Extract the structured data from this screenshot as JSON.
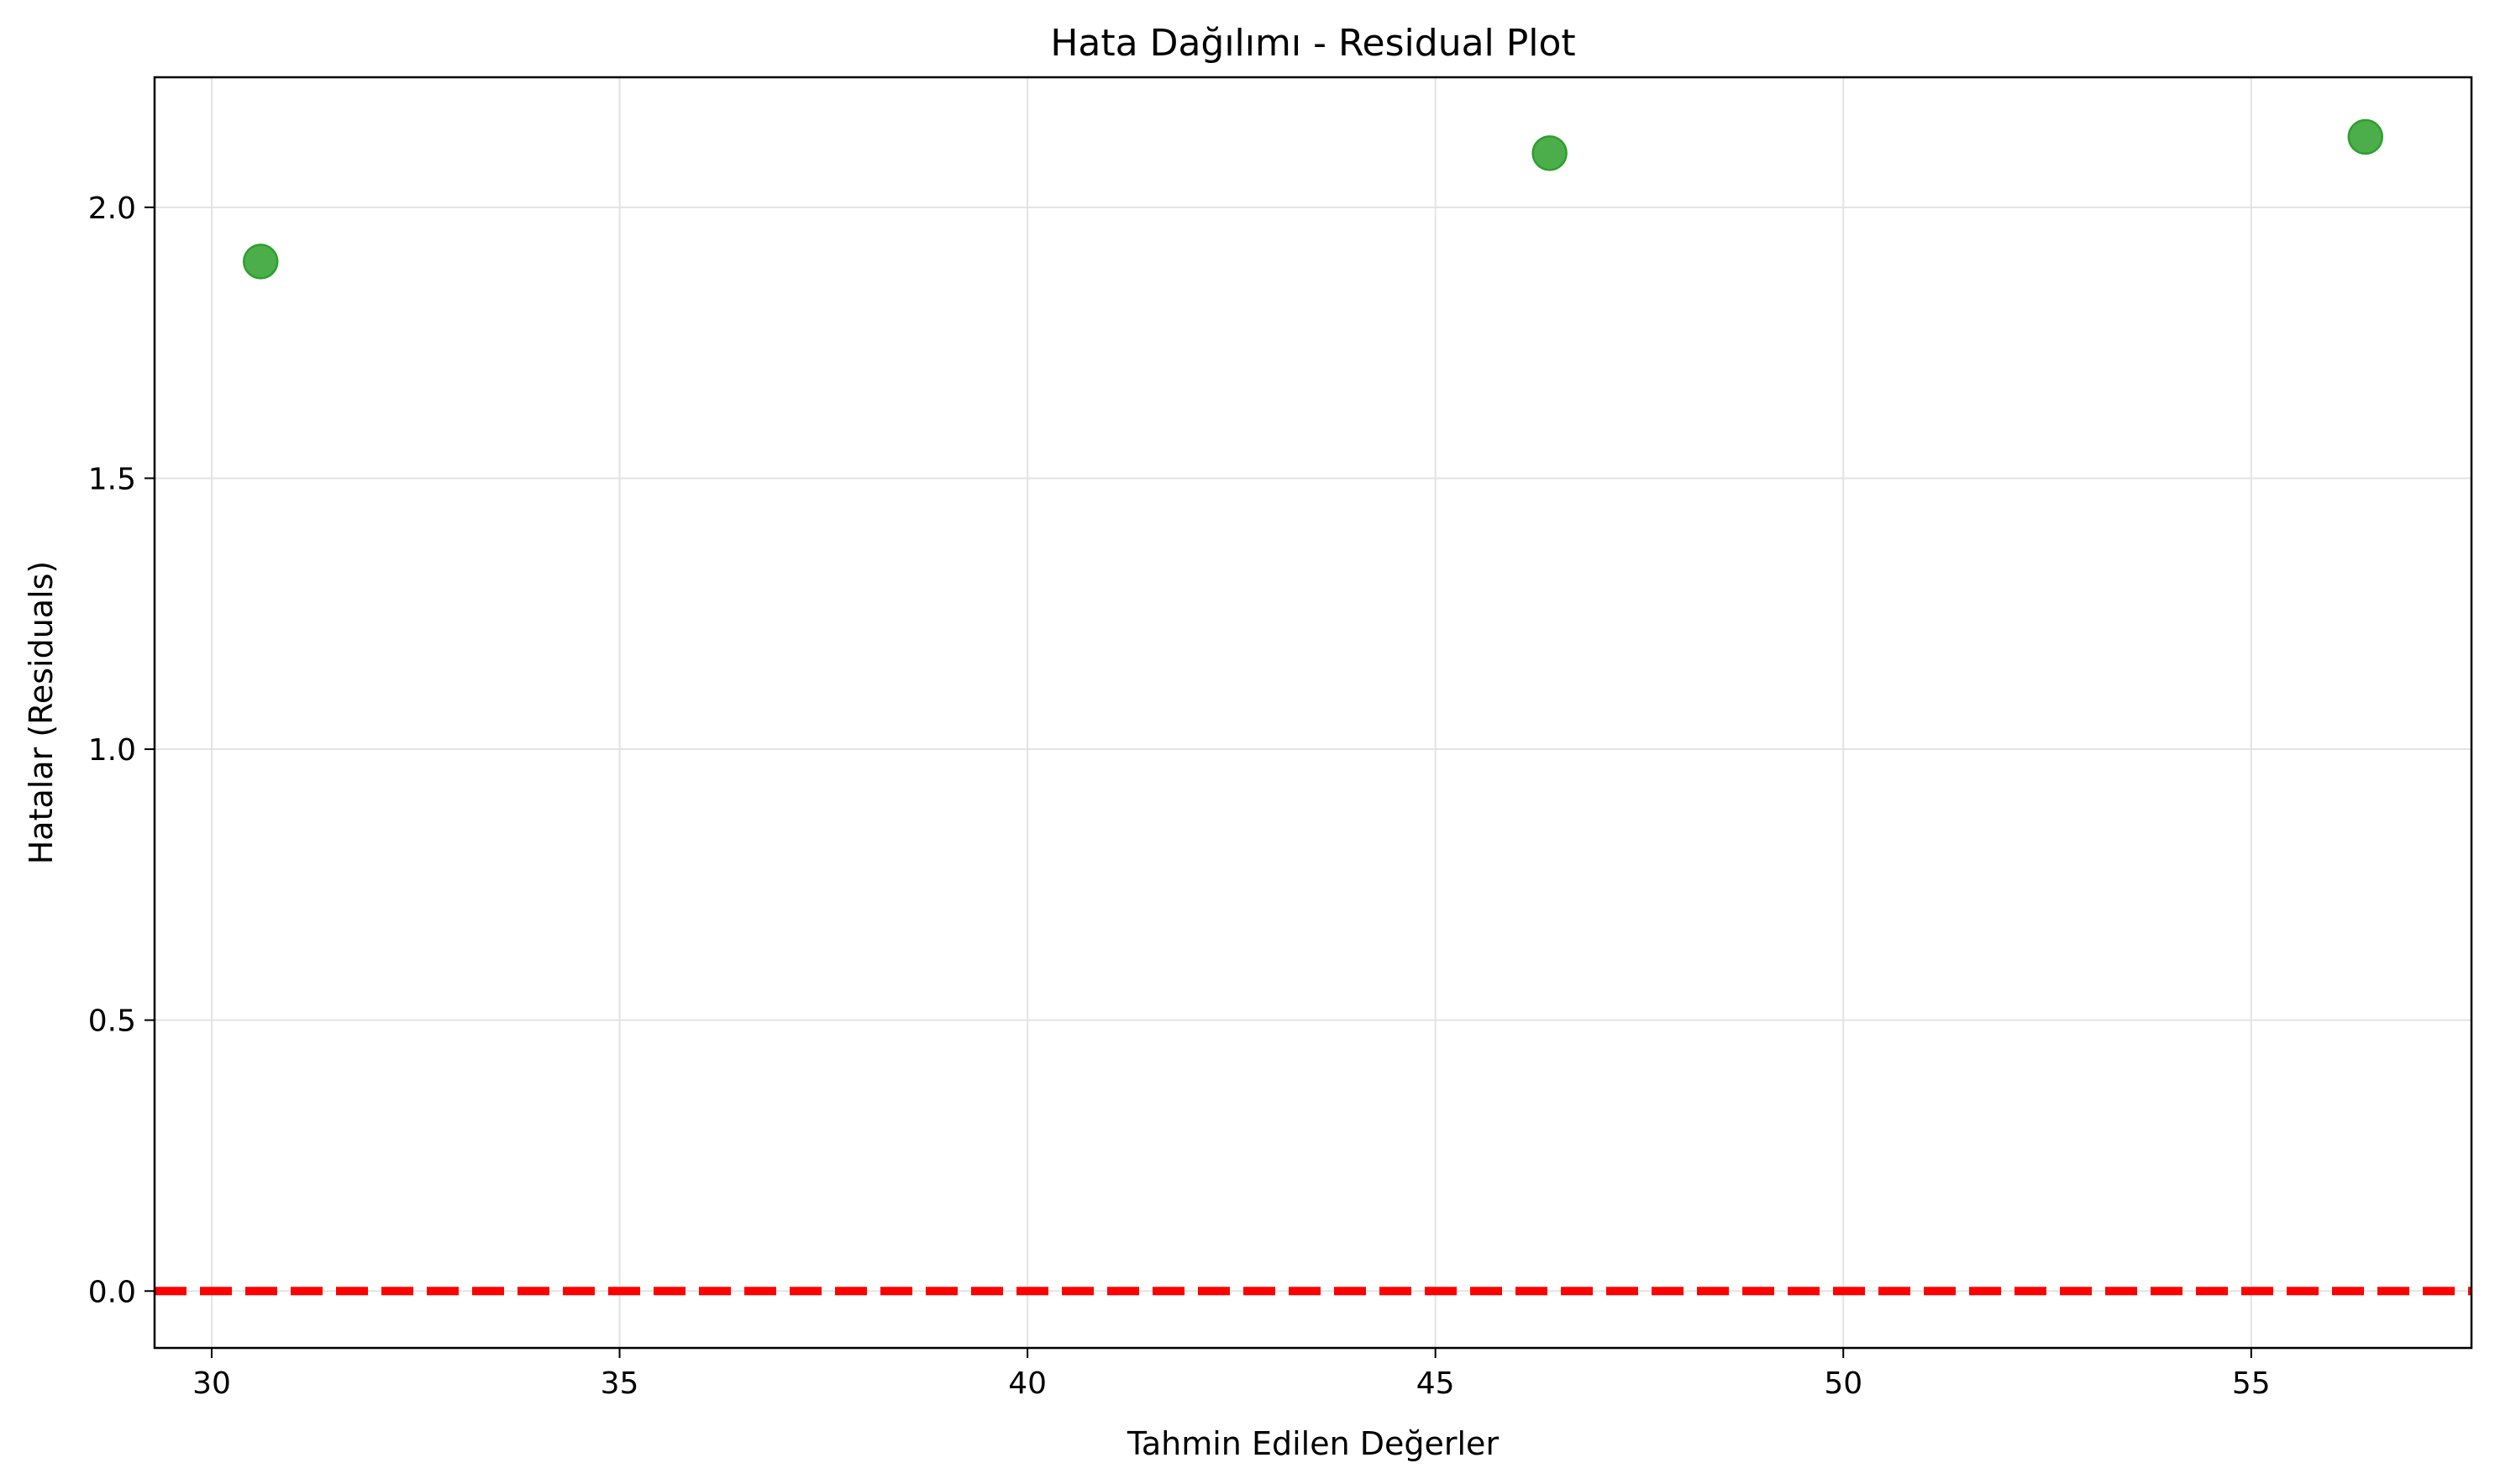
{
  "chart_data": {
    "type": "scatter",
    "title": "Hata Dağılımı - Residual Plot",
    "xlabel": "Tahmin Edilen Değerler",
    "ylabel": "Hatalar (Residuals)",
    "xlim": [
      29.3,
      57.7
    ],
    "ylim": [
      -0.105,
      2.24
    ],
    "xticks": [
      30,
      35,
      40,
      45,
      50,
      55
    ],
    "xtick_labels": [
      "30",
      "35",
      "40",
      "45",
      "50",
      "55"
    ],
    "yticks": [
      0.0,
      0.5,
      1.0,
      1.5,
      2.0
    ],
    "ytick_labels": [
      "0.0",
      "0.5",
      "1.0",
      "1.5",
      "2.0"
    ],
    "grid": true,
    "points": [
      {
        "x": 30.6,
        "y": 1.9
      },
      {
        "x": 46.4,
        "y": 2.1
      },
      {
        "x": 56.4,
        "y": 2.13
      }
    ],
    "point_color": "#2ca02c",
    "reference_line": {
      "y": 0,
      "style": "dashed",
      "color": "#ff0000"
    }
  }
}
